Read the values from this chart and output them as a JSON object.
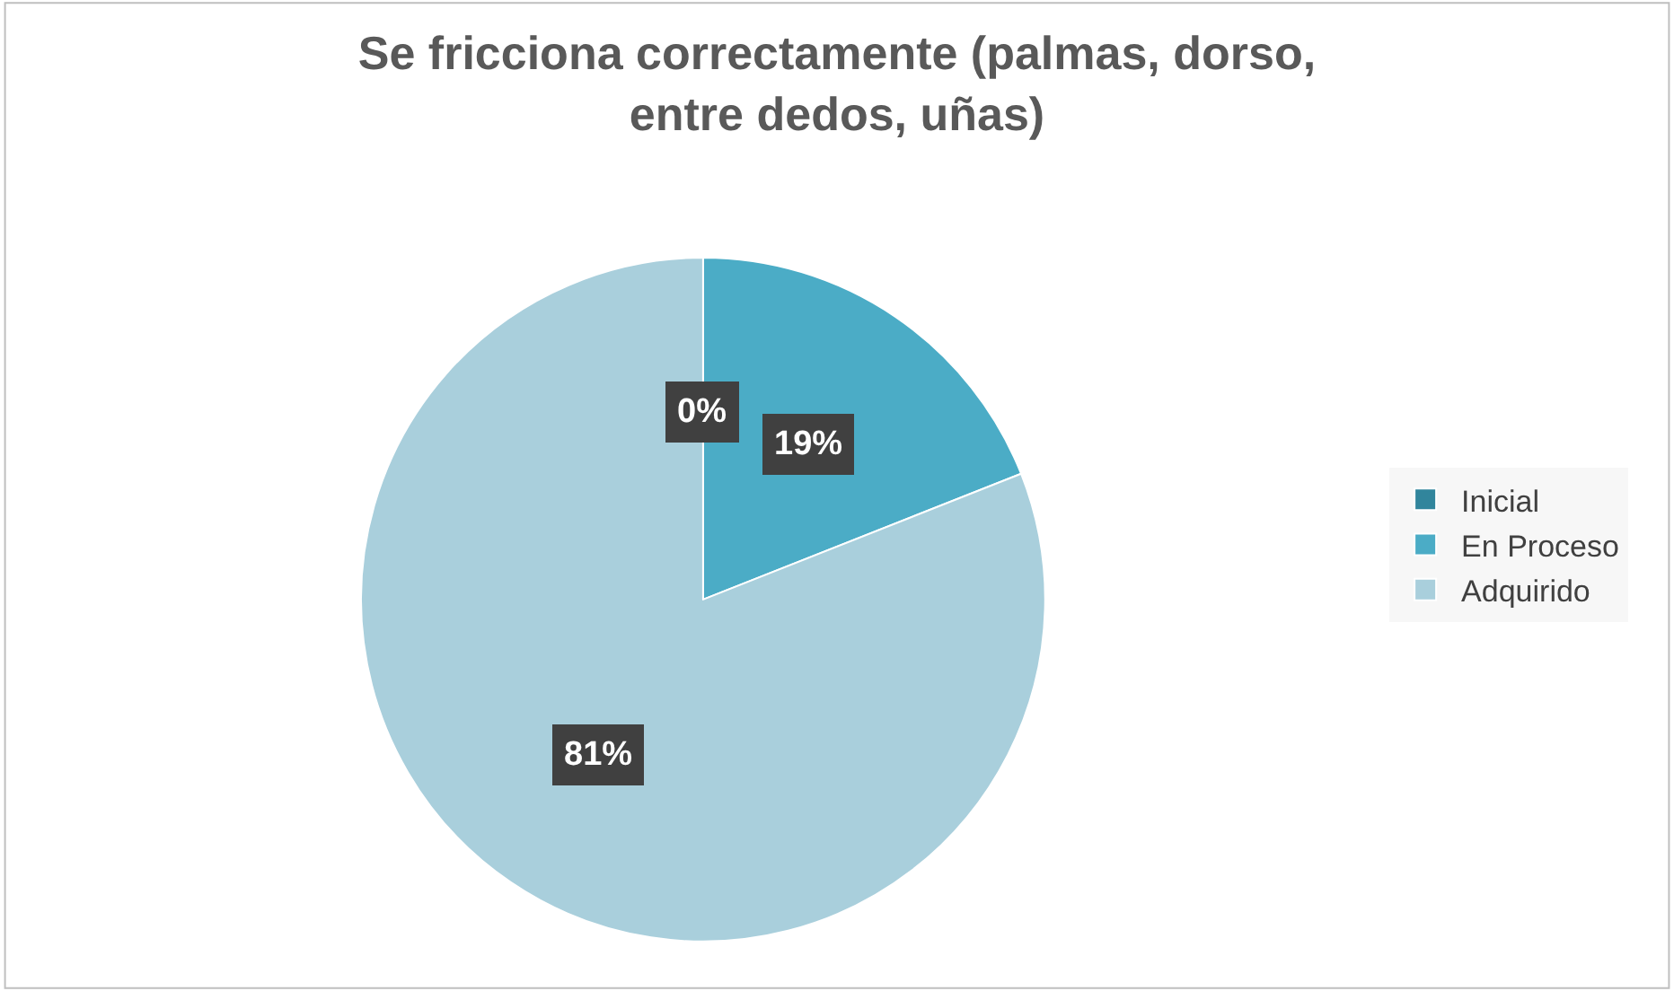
{
  "chart_data": {
    "type": "pie",
    "title": "Se fricciona correctamente (palmas, dorso, entre dedos, uñas)",
    "categories": [
      "Inicial",
      "En Proceso",
      "Adquirido"
    ],
    "values": [
      0,
      19,
      81
    ],
    "colors": [
      "#31859c",
      "#4bacc6",
      "#a9cfdc"
    ],
    "value_labels": [
      "0%",
      "19%",
      "81%"
    ],
    "legend": "right"
  }
}
